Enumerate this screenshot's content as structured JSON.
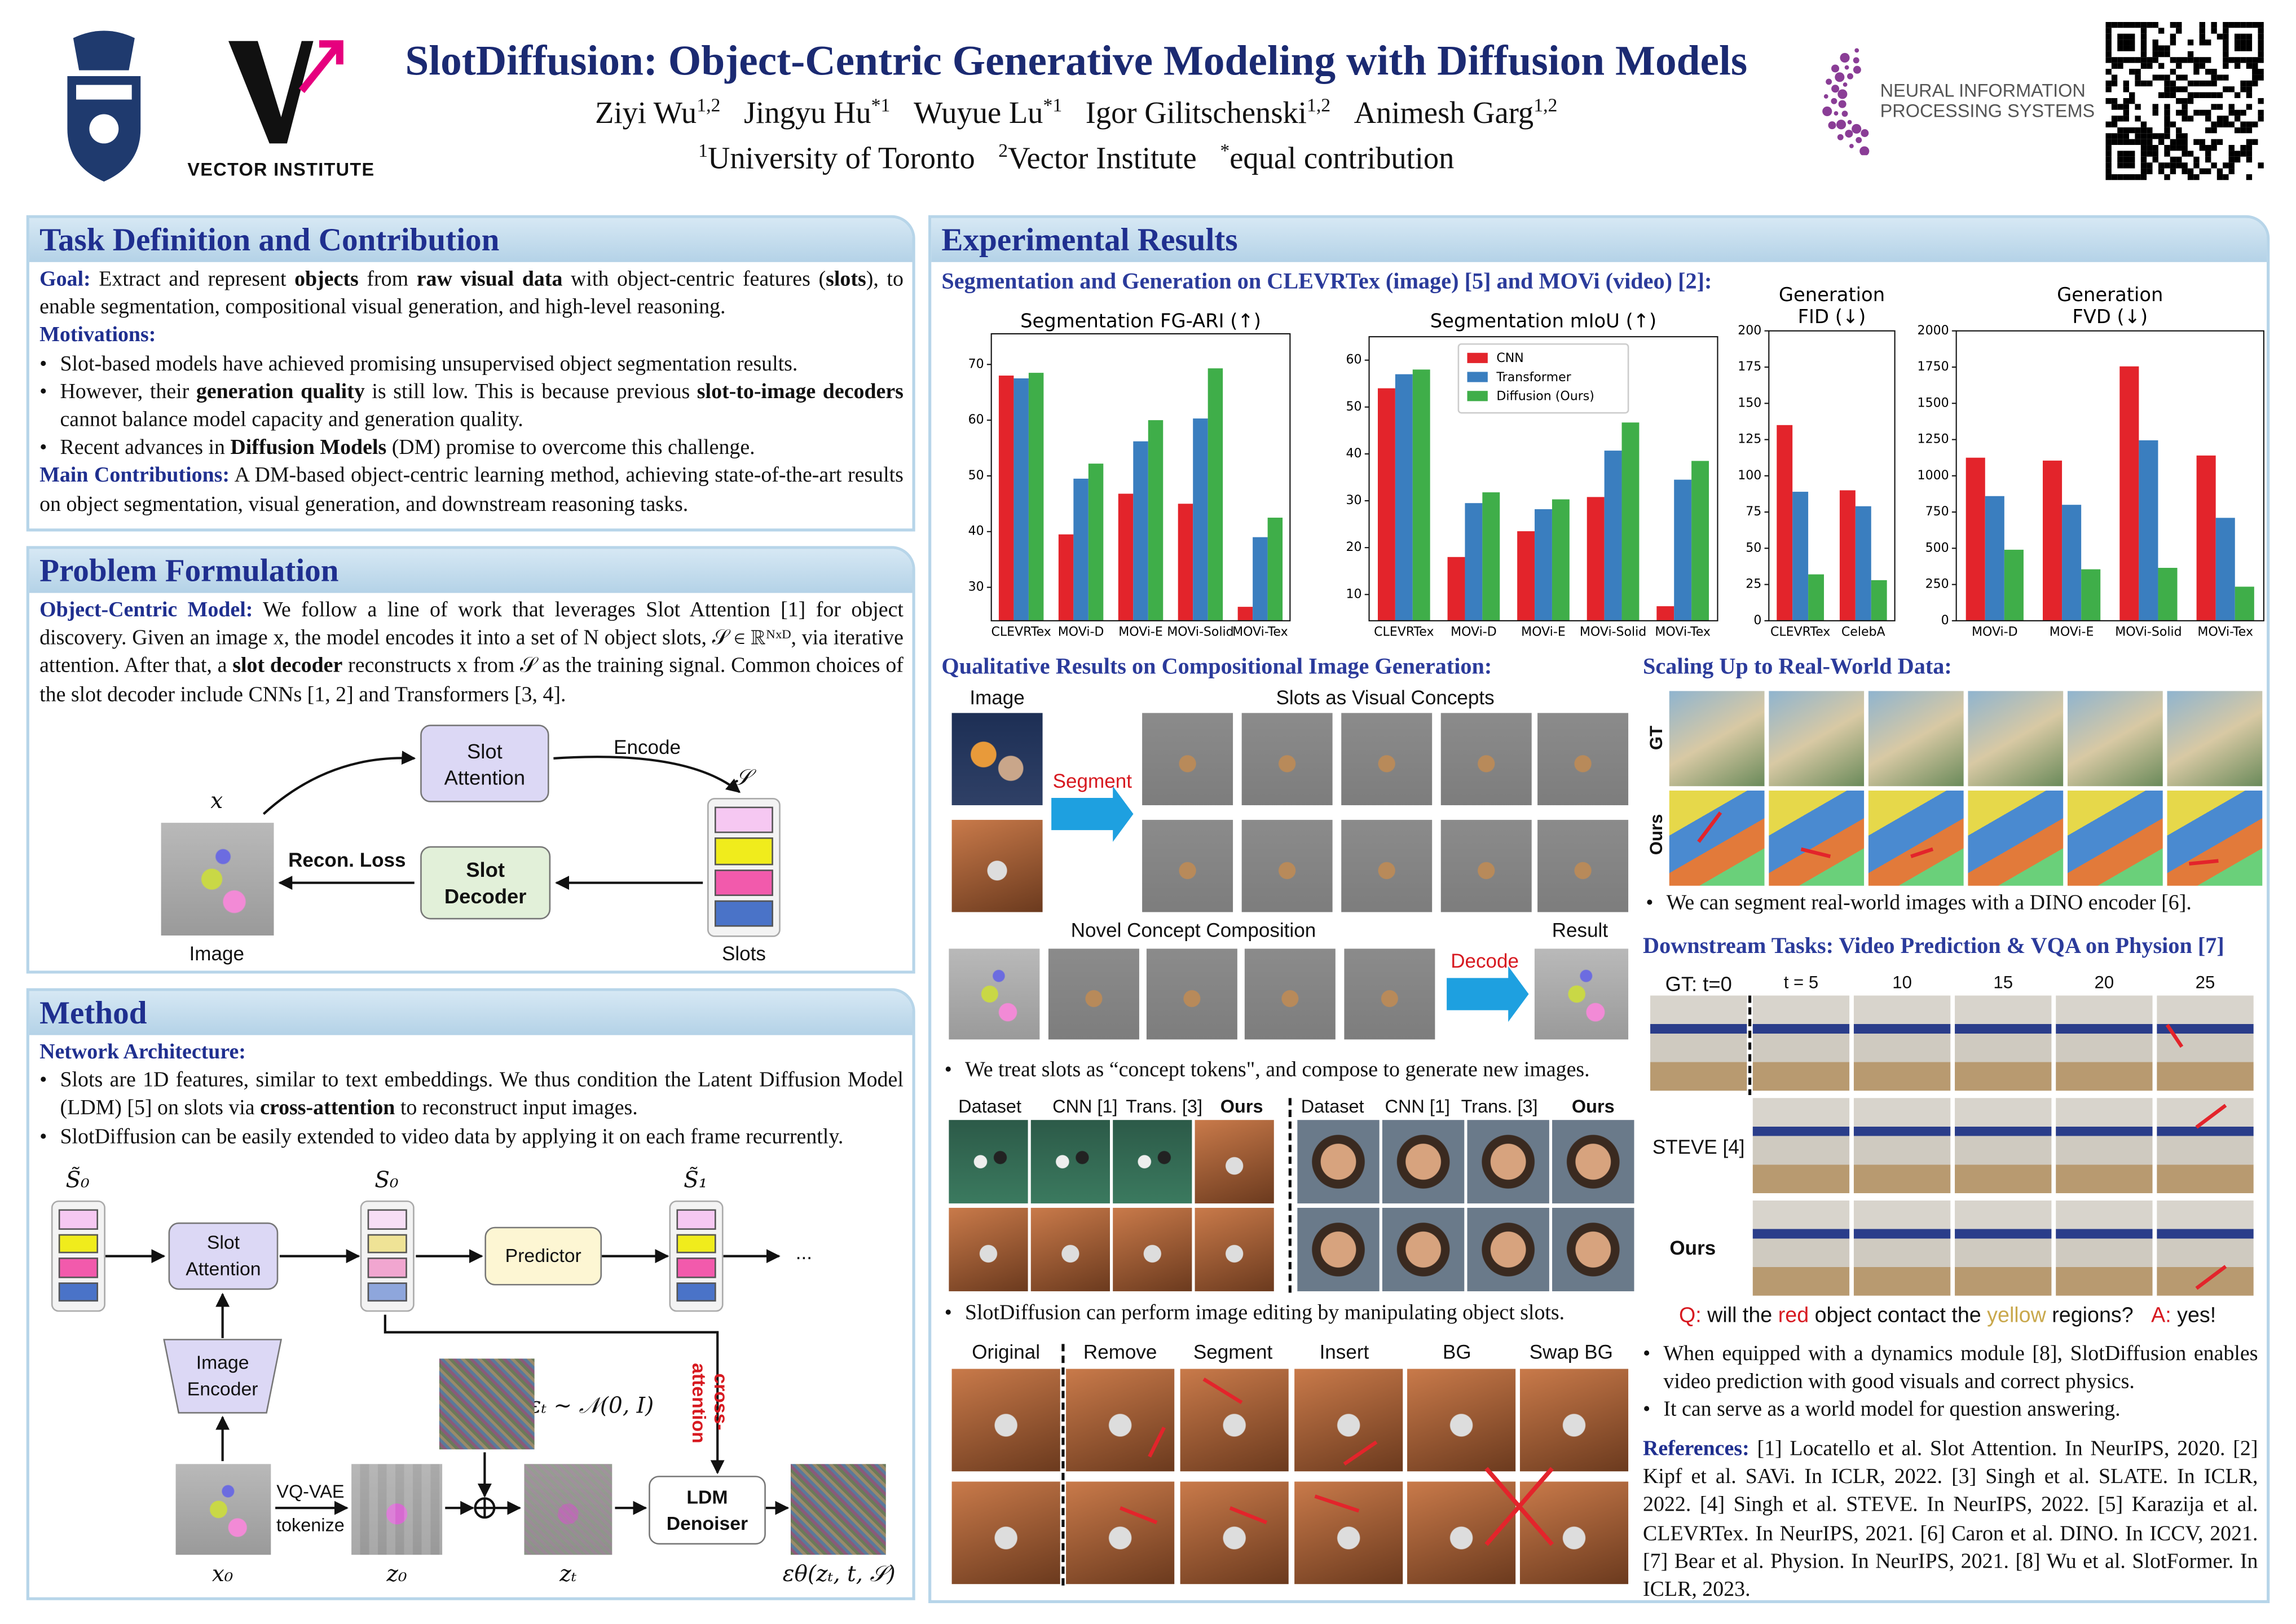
{
  "header": {
    "title": "SlotDiffusion: Object-Centric Generative Modeling with Diffusion Models",
    "authors": [
      {
        "name": "Ziyi Wu",
        "sup": "1,2"
      },
      {
        "name": "Jingyu Hu",
        "sup": "*1"
      },
      {
        "name": "Wuyue Lu",
        "sup": "*1"
      },
      {
        "name": "Igor Gilitschenski",
        "sup": "1,2"
      },
      {
        "name": "Animesh Garg",
        "sup": "1,2"
      }
    ],
    "affiliations": [
      {
        "sup": "1",
        "name": "University of Toronto"
      },
      {
        "sup": "2",
        "name": "Vector Institute"
      },
      {
        "sup": "*",
        "name": "equal contribution"
      }
    ],
    "logos": {
      "vector": "VECTOR INSTITUTE",
      "neurips": [
        "NEURAL INFORMATION",
        "PROCESSING SYSTEMS"
      ]
    }
  },
  "task": {
    "title": "Task Definition and Contribution",
    "items": [
      {
        "label": "Goal:",
        "parts": [
          " Extract and represent ",
          "objects",
          " from ",
          "raw visual data",
          " with object-centric features (",
          "slots",
          "), to enable segmentation, compositional visual generation, and high-level reasoning."
        ]
      },
      {
        "label": "Motivations:"
      },
      {
        "bullet": true,
        "parts": [
          "Slot-based models have achieved promising unsupervised object segmentation results."
        ]
      },
      {
        "bullet": true,
        "parts": [
          "However, their ",
          "generation quality",
          " is still low.  This is because previous ",
          "slot-to-image decoders",
          " cannot balance model capacity and generation quality."
        ]
      },
      {
        "bullet": true,
        "parts": [
          "Recent advances in ",
          "Diffusion Models",
          " (DM) promise to overcome this challenge."
        ]
      },
      {
        "label": "Main Contributions:",
        "parts": [
          " A DM-based object-centric learning method, achieving state-of-the-art results on object segmentation, visual generation, and downstream reasoning tasks."
        ]
      }
    ]
  },
  "problem": {
    "title": "Problem Formulation",
    "items": [
      {
        "label": "Object-Centric Model:",
        "parts": [
          " We follow a line of work that leverages Slot Attention [1] for object discovery.  Given an image x, the model encodes it into a set of N object slots, 𝒮 ∈ ℝᴺˣᴰ, via iterative attention. After that, a ",
          "slot decoder",
          " reconstructs x from 𝒮 as the training signal. Common choices of the slot decoder include CNNs [1, 2] and Transformers [3, 4]."
        ]
      }
    ],
    "diagram": {
      "slot_attention": "Slot Attention",
      "encode": "Encode",
      "slots_symbol": "𝒮",
      "image_symbol": "x",
      "recon_loss": "Recon. Loss",
      "slot_decoder": "Slot Decoder",
      "image": "Image",
      "slots": "Slots"
    }
  },
  "method": {
    "title": "Method",
    "items": [
      {
        "label": "Network Architecture:"
      },
      {
        "bullet": true,
        "parts": [
          "Slots are 1D features, similar to text embeddings.  We thus condition the Latent Diffusion Model (LDM) [5] on slots via ",
          "cross-attention",
          " to reconstruct input images."
        ]
      },
      {
        "bullet": true,
        "parts": [
          "SlotDiffusion can be easily extended to video data by applying it on each frame recurrently."
        ]
      }
    ],
    "diagram": {
      "s0_tilde": "S̃₀",
      "slot_attention": "Slot Attention",
      "s0": "S₀",
      "predictor": "Predictor",
      "s1_tilde": "S̃₁",
      "ellipsis": "...",
      "image_encoder": "Image Encoder",
      "cross_attention": "cross-attention",
      "noise": "εₜ ∼ 𝒩(0, I)",
      "vqvae": "VQ-VAE",
      "tokenize": "tokenize",
      "x0": "x₀",
      "z0": "z₀",
      "zt": "zₜ",
      "ldm": "LDM Denoiser",
      "output": "εθ(zₜ, t, 𝒮)"
    }
  },
  "results": {
    "title": "Experimental Results",
    "seg_heading": "Segmentation and Generation on CLEVRTex (image) [5] and MOVi (video) [2]:",
    "qualitative": {
      "heading": "Qualitative Results on Compositional Image Generation:",
      "image": "Image",
      "slots": "Slots as Visual Concepts",
      "segment": "Segment",
      "composition": "Novel Concept Composition",
      "decode": "Decode",
      "result": "Result",
      "note": "We treat slots as “concept tokens\", and compose to generate new images."
    },
    "comparison": {
      "headers": [
        "Dataset",
        "CNN [1]",
        "Trans. [3]",
        "Ours",
        "Dataset",
        "CNN [1]",
        "Trans. [3]",
        "Ours"
      ],
      "note": "SlotDiffusion can perform image editing by manipulating object slots."
    },
    "editing": {
      "headers": [
        "Original",
        "Remove",
        "Segment",
        "Insert",
        "BG",
        "Swap BG"
      ]
    },
    "real_world": {
      "heading": "Scaling Up to Real-World Data:",
      "rows": [
        "GT",
        "Ours"
      ],
      "note": "We can segment real-world images with a DINO encoder [6]."
    },
    "downstream": {
      "heading": "Downstream Tasks: Video Prediction & VQA on Physion [7]",
      "times": [
        "GT: t=0",
        "t = 5",
        "10",
        "15",
        "20",
        "25"
      ],
      "rows": [
        "STEVE [4]",
        "Ours"
      ],
      "qa": {
        "q_label": "Q:",
        "question": [
          " will the ",
          "red",
          " object contact the ",
          "yellow",
          " regions?"
        ],
        "a_label": "A:",
        "answer": " yes!"
      },
      "notes": [
        "When equipped with a dynamics module [8], SlotDiffusion enables video prediction with good visuals and correct physics.",
        "It can serve as a world model for question answering."
      ]
    },
    "references": {
      "label": "References:",
      "text": " [1] Locatello et al. Slot Attention. In NeurIPS, 2020. [2] Kipf et al. SAVi. In ICLR, 2022. [3] Singh et al. SLATE. In ICLR, 2022. [4] Singh et al. STEVE. In NeurIPS, 2022. [5] Karazija et al. CLEVRTex. In NeurIPS, 2021. [6] Caron et al. DINO. In ICCV, 2021. [7] Bear et al. Physion. In NeurIPS, 2021. [8] Wu et al. SlotFormer. In ICLR, 2023."
    }
  },
  "chart_data": [
    {
      "type": "bar",
      "title": "Segmentation FG-ARI (↑)",
      "categories": [
        "CLEVRTex",
        "MOVi-D",
        "MOVi-E",
        "MOVi-Solid",
        "MOVi-Tex"
      ],
      "series": [
        {
          "color": "#e3242b",
          "values": [
            68,
            39.5,
            46.8,
            45,
            26.5
          ]
        },
        {
          "color": "#3a7ebf",
          "values": [
            67.5,
            49.5,
            56.2,
            60.3,
            39
          ]
        },
        {
          "color": "#3fae49",
          "values": [
            68.5,
            52.2,
            60,
            69.3,
            42.5
          ]
        }
      ],
      "ylim": [
        24,
        75.5
      ],
      "yticks": [
        30,
        40,
        50,
        60,
        70
      ]
    },
    {
      "type": "bar",
      "title": "Segmentation mIoU (↑)",
      "categories": [
        "CLEVRTex",
        "MOVi-D",
        "MOVi-E",
        "MOVi-Solid",
        "MOVi-Tex"
      ],
      "series": [
        {
          "name": "CNN",
          "color": "#e3242b",
          "values": [
            54,
            18,
            23.5,
            30.8,
            7.5
          ]
        },
        {
          "name": "Transformer",
          "color": "#3a7ebf",
          "values": [
            57,
            29.5,
            28.2,
            40.7,
            34.5
          ]
        },
        {
          "name": "Diffusion (Ours)",
          "color": "#3fae49",
          "values": [
            58,
            31.8,
            30.3,
            46.7,
            38.5
          ]
        }
      ],
      "ylim": [
        4.4,
        65
      ],
      "yticks": [
        10,
        20,
        30,
        40,
        50,
        60
      ],
      "legend": "upper center"
    },
    {
      "type": "bar",
      "title": [
        "Generation",
        "FID (↓)"
      ],
      "categories": [
        "CLEVRTex",
        "CelebA"
      ],
      "series": [
        {
          "color": "#e3242b",
          "values": [
            135,
            90
          ]
        },
        {
          "color": "#3a7ebf",
          "values": [
            89,
            79
          ]
        },
        {
          "color": "#3fae49",
          "values": [
            32,
            28
          ]
        }
      ],
      "ylim": [
        0,
        200
      ],
      "yticks": [
        0,
        25,
        50,
        75,
        100,
        125,
        150,
        175,
        200
      ]
    },
    {
      "type": "bar",
      "title": [
        "Generation",
        "FVD (↓)"
      ],
      "categories": [
        "MOVi-D",
        "MOVi-E",
        "MOVi-Solid",
        "MOVi-Tex"
      ],
      "series": [
        {
          "color": "#e3242b",
          "values": [
            1125,
            1105,
            1755,
            1140
          ]
        },
        {
          "color": "#3a7ebf",
          "values": [
            860,
            800,
            1245,
            710
          ]
        },
        {
          "color": "#3fae49",
          "values": [
            490,
            355,
            365,
            235
          ]
        }
      ],
      "ylim": [
        0,
        2000
      ],
      "yticks": [
        0,
        250,
        500,
        750,
        1000,
        1250,
        1500,
        1750,
        2000
      ]
    }
  ]
}
